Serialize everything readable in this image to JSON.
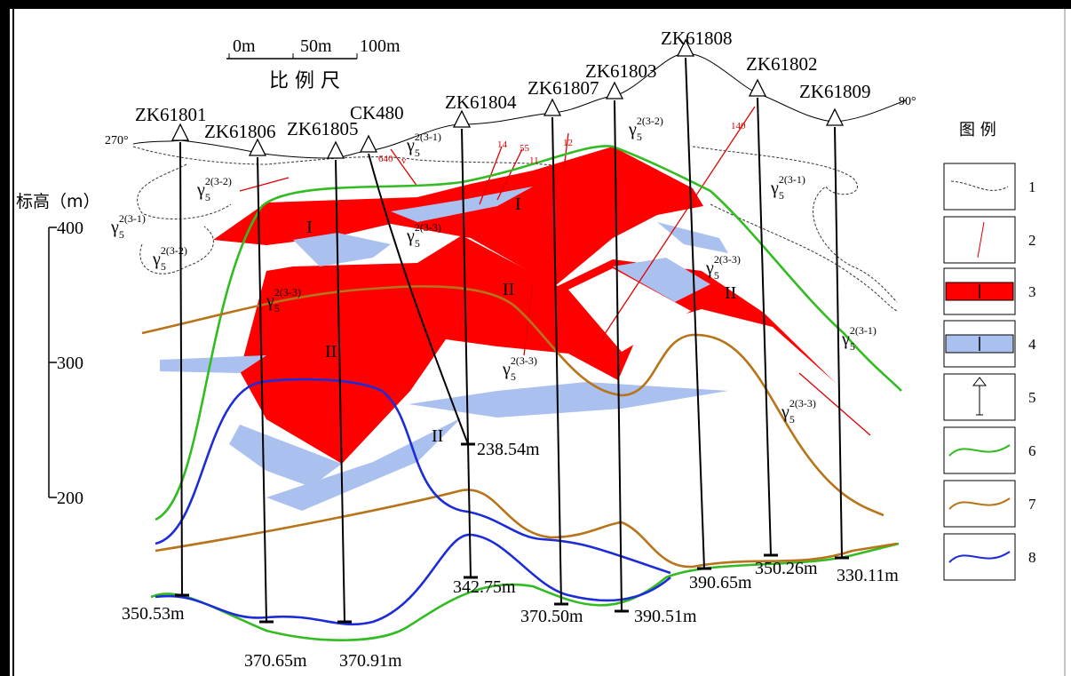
{
  "scale_bar": {
    "ticks": [
      "0m",
      "50m",
      "100m"
    ],
    "label": "比 例 尺"
  },
  "orientation": {
    "left": "270°",
    "right": "90°"
  },
  "elevation_axis": {
    "title": "标高（m）",
    "ticks": [
      "400",
      "300",
      "200"
    ]
  },
  "boreholes": [
    {
      "name": "ZK61801",
      "depth": "350.53m"
    },
    {
      "name": "ZK61806",
      "depth": "370.65m"
    },
    {
      "name": "ZK61805",
      "depth": "370.91m"
    },
    {
      "name": "CK480",
      "depth": "238.54m"
    },
    {
      "name": "ZK61804",
      "depth": "342.75m"
    },
    {
      "name": "ZK61807",
      "depth": "370.50m"
    },
    {
      "name": "ZK61803",
      "depth": "390.51m"
    },
    {
      "name": "ZK61808",
      "depth": "390.65m"
    },
    {
      "name": "ZK61802",
      "depth": "350.26m"
    },
    {
      "name": "ZK61809",
      "depth": "330.11m"
    }
  ],
  "ore_body_labels": [
    "I",
    "I",
    "II",
    "II",
    "II",
    "II"
  ],
  "lithology_labels": [
    {
      "symbol": "γ",
      "sub": "5",
      "sup": "2(3-1)"
    },
    {
      "symbol": "γ",
      "sub": "5",
      "sup": "2(3-2)"
    },
    {
      "symbol": "γ",
      "sub": "5",
      "sup": "2(3-1)"
    },
    {
      "symbol": "γ",
      "sub": "5",
      "sup": "2(3-2)"
    },
    {
      "symbol": "γ",
      "sub": "5",
      "sup": "2(3-3)"
    },
    {
      "symbol": "γ",
      "sub": "5",
      "sup": "2(3-3)"
    },
    {
      "symbol": "γ",
      "sub": "5",
      "sup": "2(3-2)"
    },
    {
      "symbol": "γ",
      "sub": "5",
      "sup": "2(3-1)"
    },
    {
      "symbol": "γ",
      "sub": "5",
      "sup": "2(3-3)"
    },
    {
      "symbol": "γ",
      "sub": "5",
      "sup": "2(3-3)"
    },
    {
      "symbol": "γ",
      "sub": "5",
      "sup": "2(3-1)"
    },
    {
      "symbol": "γ",
      "sub": "5",
      "sup": "2(3-3)"
    }
  ],
  "fault_labels": [
    "640",
    "v",
    "14",
    "55",
    "11",
    "12",
    "140"
  ],
  "legend": {
    "title": "图 例",
    "items": [
      "1",
      "2",
      "3",
      "4",
      "5",
      "6",
      "7",
      "8"
    ]
  }
}
